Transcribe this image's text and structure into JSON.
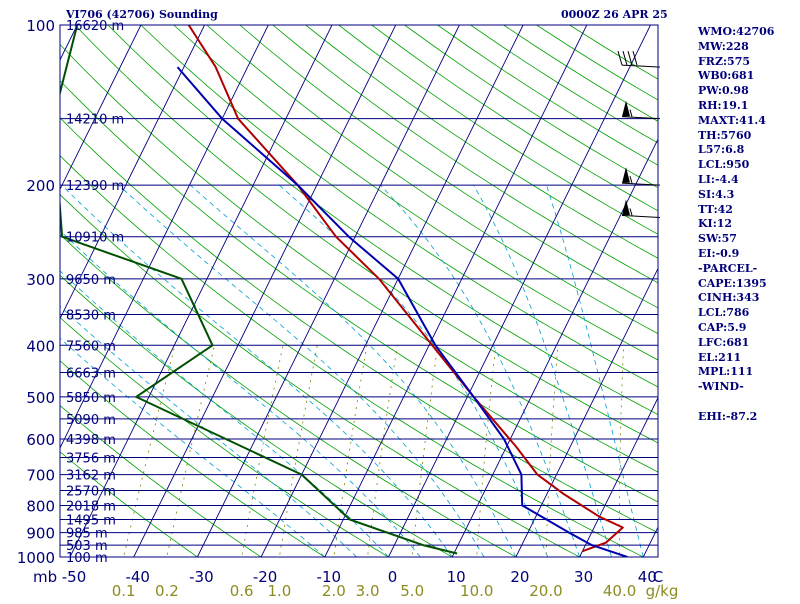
{
  "header": {
    "station_title": "VI706 (42706) Sounding",
    "valid_time": "0000Z 26 APR 25"
  },
  "indices": [
    "WMO:42706",
    "MW:228",
    "FRZ:575",
    "WB0:681",
    "PW:0.98",
    "RH:19.1",
    "MAXT:41.4",
    "TH:5760",
    "L57:6.8",
    "LCL:950",
    "LI:-4.4",
    "SI:4.3",
    "TT:42",
    "KI:12",
    "SW:57",
    "EI:-0.9",
    "-PARCEL-",
    "CAPE:1395",
    "CINH:343",
    "LCL:786",
    "CAP:5.9",
    "LFC:681",
    "EL:211",
    "MPL:111",
    "-WIND-",
    "",
    "EHI:-87.2"
  ],
  "colors": {
    "frame": "#000080",
    "isobar": "#000080",
    "isotherm": "#000080",
    "dry_adiabat": "#00a000",
    "moist_adiabat": "#00a0d0",
    "mixing_ratio": "#808000",
    "temperature": "#b00000",
    "dewpoint": "#005000",
    "parcel": "#0000b0",
    "text": "#00007a",
    "mixing_label": "#8c8c20"
  },
  "chart_data": {
    "type": "line",
    "diagram": "skew-t log-p",
    "pressure_range_hpa": [
      100,
      1000
    ],
    "temperature_range_c": [
      -50,
      50
    ],
    "isobars_hpa": [
      100,
      150,
      200,
      250,
      300,
      350,
      400,
      450,
      500,
      550,
      600,
      650,
      700,
      750,
      800,
      850,
      900,
      950,
      1000
    ],
    "pressure_tick_labels": [
      "100",
      "200",
      "300",
      "400",
      "500",
      "600",
      "700",
      "800",
      "900",
      "1000"
    ],
    "pressure_unit_label": "mb",
    "temperature_tick_labels": [
      "-50",
      "-40",
      "-30",
      "-20",
      "-10",
      "0",
      "10",
      "20",
      "30",
      "40"
    ],
    "temperature_unit_label": "C",
    "height_labels": [
      {
        "p": 100,
        "text": "16620 m"
      },
      {
        "p": 150,
        "text": "14210 m"
      },
      {
        "p": 200,
        "text": "12390 m"
      },
      {
        "p": 250,
        "text": "10910 m"
      },
      {
        "p": 300,
        "text": "9650 m"
      },
      {
        "p": 350,
        "text": "8530 m"
      },
      {
        "p": 400,
        "text": "7560 m"
      },
      {
        "p": 450,
        "text": "6663 m"
      },
      {
        "p": 500,
        "text": "5850 m"
      },
      {
        "p": 550,
        "text": "5090 m"
      },
      {
        "p": 600,
        "text": "4398 m"
      },
      {
        "p": 650,
        "text": "3756 m"
      },
      {
        "p": 700,
        "text": "3162 m"
      },
      {
        "p": 750,
        "text": "2570 m"
      },
      {
        "p": 800,
        "text": "2018 m"
      },
      {
        "p": 850,
        "text": "1495 m"
      },
      {
        "p": 900,
        "text": "985 m"
      },
      {
        "p": 950,
        "text": "503 m"
      },
      {
        "p": 1000,
        "text": "100 m"
      }
    ],
    "mixing_ratio_labels": [
      {
        "w": 0.1,
        "text": "0.1"
      },
      {
        "w": 0.2,
        "text": "0.2"
      },
      {
        "w": 0.6,
        "text": "0.6"
      },
      {
        "w": 1.0,
        "text": "1.0"
      },
      {
        "w": 2.0,
        "text": "2.0"
      },
      {
        "w": 3.0,
        "text": "3.0"
      },
      {
        "w": 5.0,
        "text": "5.0"
      },
      {
        "w": 10.0,
        "text": "10.0"
      },
      {
        "w": 20.0,
        "text": "20.0"
      },
      {
        "w": 40.0,
        "text": "40.0"
      }
    ],
    "mixing_ratio_unit_label": "g/kg",
    "series": [
      {
        "key": "temperature",
        "points": [
          {
            "p": 975,
            "t": 30.0
          },
          {
            "p": 940,
            "t": 33.0
          },
          {
            "p": 880,
            "t": 34.5
          },
          {
            "p": 840,
            "t": 30.0
          },
          {
            "p": 760,
            "t": 22.5
          },
          {
            "p": 700,
            "t": 17.0
          },
          {
            "p": 620,
            "t": 11.5
          },
          {
            "p": 500,
            "t": 1.0
          },
          {
            "p": 400,
            "t": -9.5
          },
          {
            "p": 300,
            "t": -23.0
          },
          {
            "p": 250,
            "t": -33.0
          },
          {
            "p": 200,
            "t": -43.0
          },
          {
            "p": 150,
            "t": -57.5
          },
          {
            "p": 120,
            "t": -65.0
          },
          {
            "p": 100,
            "t": -72.5
          }
        ]
      },
      {
        "key": "dewpoint",
        "points": [
          {
            "p": 985,
            "t": 10.5
          },
          {
            "p": 950,
            "t": 4.5
          },
          {
            "p": 850,
            "t": -9.0
          },
          {
            "p": 700,
            "t": -20.0
          },
          {
            "p": 500,
            "t": -52.0
          },
          {
            "p": 400,
            "t": -44.0
          },
          {
            "p": 300,
            "t": -54.0
          },
          {
            "p": 250,
            "t": -76.0
          },
          {
            "p": 150,
            "t": -86.5
          },
          {
            "p": 100,
            "t": -90.0
          }
        ]
      },
      {
        "key": "parcel",
        "points": [
          {
            "p": 1000,
            "t": 37.5
          },
          {
            "p": 950,
            "t": 31.0
          },
          {
            "p": 900,
            "t": 26.5
          },
          {
            "p": 800,
            "t": 17.0
          },
          {
            "p": 700,
            "t": 14.5
          },
          {
            "p": 600,
            "t": 9.0
          },
          {
            "p": 500,
            "t": 1.0
          },
          {
            "p": 400,
            "t": -9.0
          },
          {
            "p": 300,
            "t": -20.0
          },
          {
            "p": 250,
            "t": -31.0
          },
          {
            "p": 200,
            "t": -43.0
          },
          {
            "p": 150,
            "t": -60.0
          },
          {
            "p": 120,
            "t": -71.0
          }
        ]
      }
    ],
    "wind_barbs": [
      {
        "p": 120,
        "speed_kt": 40
      },
      {
        "p": 150,
        "speed_kt": 55
      },
      {
        "p": 200,
        "speed_kt": 55
      },
      {
        "p": 230,
        "speed_kt": 55
      }
    ]
  }
}
